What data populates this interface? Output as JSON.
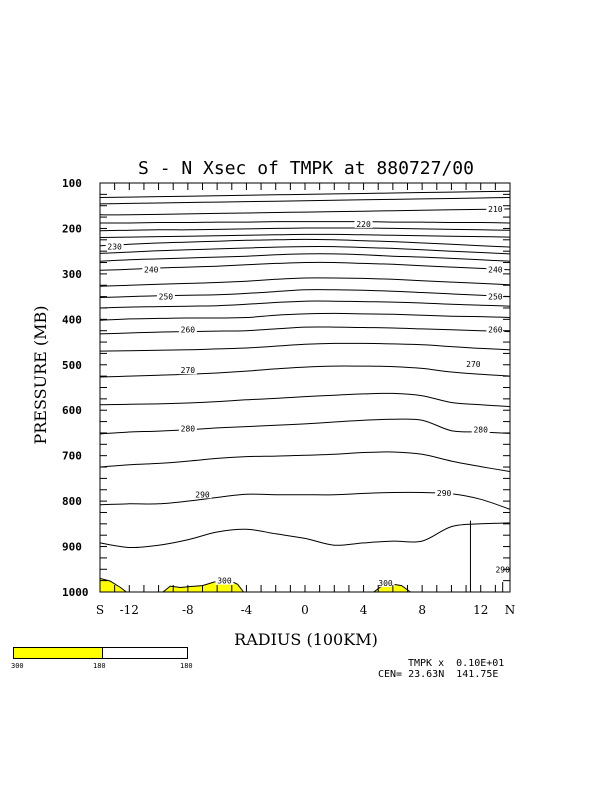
{
  "chart_data": {
    "type": "contour",
    "title": "S - N Xsec of TMPK at 880727/00",
    "xlabel": "RADIUS (100KM)",
    "ylabel": "PRESSURE (MB)",
    "xlim": [
      -14,
      14
    ],
    "ylim_pressure": [
      1000,
      100
    ],
    "x_tick_labels": [
      "S",
      "-12",
      "-8",
      "-4",
      "0",
      "4",
      "8",
      "12",
      "N"
    ],
    "x_tick_values": [
      -14,
      -12,
      -8,
      -4,
      0,
      4,
      8,
      12,
      14
    ],
    "y_tick_labels": [
      "100",
      "200",
      "300",
      "400",
      "500",
      "600",
      "700",
      "800",
      "900",
      "1000"
    ],
    "y_tick_values": [
      100,
      200,
      300,
      400,
      500,
      600,
      700,
      800,
      900,
      1000
    ],
    "x": [
      -14,
      -12,
      -10,
      -8,
      -6,
      -4,
      -2,
      0,
      2,
      4,
      6,
      8,
      10,
      12,
      14
    ],
    "contours": [
      {
        "level": 300,
        "label": "300",
        "labeled": true
      },
      {
        "level": 290,
        "label": "290",
        "labeled": true
      },
      {
        "level": 280,
        "label": "280",
        "labeled": true
      },
      {
        "level": 270,
        "label": "270",
        "labeled": true
      },
      {
        "level": 260,
        "label": "260",
        "labeled": true
      },
      {
        "level": 250,
        "label": "250",
        "labeled": true
      },
      {
        "level": 240,
        "label": "240",
        "labeled": true
      },
      {
        "level": 230,
        "label": "230",
        "labeled": true
      },
      {
        "level": 220,
        "label": "220",
        "labeled": true
      },
      {
        "level": 210,
        "label": "210",
        "labeled": true
      }
    ],
    "lines": [
      {
        "kind": "290",
        "p": [
          892,
          902,
          897,
          885,
          868,
          862,
          872,
          882,
          897,
          892,
          888,
          888,
          856,
          850,
          848
        ]
      },
      {
        "kind": "280-1",
        "p": [
          808,
          806,
          806,
          800,
          792,
          785,
          786,
          786,
          786,
          783,
          781,
          781,
          784,
          796,
          818
        ]
      },
      {
        "kind": "280-2",
        "p": [
          725,
          720,
          717,
          712,
          706,
          702,
          701,
          699,
          697,
          693,
          692,
          697,
          712,
          724,
          735
        ]
      },
      {
        "kind": "280-3",
        "p": [
          652,
          648,
          646,
          643,
          639,
          636,
          633,
          630,
          626,
          622,
          620,
          622,
          645,
          648,
          651
        ]
      },
      {
        "kind": "270-1",
        "p": [
          588,
          587,
          586,
          584,
          581,
          577,
          574,
          570,
          567,
          564,
          563,
          568,
          583,
          588,
          592
        ]
      },
      {
        "kind": "270-2",
        "p": [
          527,
          525,
          523,
          521,
          518,
          514,
          509,
          505,
          503,
          503,
          504,
          508,
          516,
          521,
          525
        ]
      },
      {
        "kind": "260-1",
        "p": [
          470,
          469,
          468,
          467,
          465,
          463,
          459,
          455,
          453,
          453,
          454,
          456,
          460,
          464,
          467
        ]
      },
      {
        "kind": "260-2",
        "p": [
          432,
          430,
          428,
          427,
          426,
          425,
          421,
          417,
          417,
          418,
          419,
          421,
          423,
          425,
          427
        ]
      },
      {
        "kind": "260-3",
        "p": [
          402,
          399,
          398,
          397,
          397,
          396,
          391,
          388,
          387,
          388,
          389,
          391,
          393,
          394,
          396
        ]
      },
      {
        "kind": "250-1",
        "p": [
          375,
          373,
          372,
          371,
          370,
          367,
          363,
          360,
          360,
          361,
          362,
          364,
          367,
          369,
          371
        ]
      },
      {
        "kind": "250-2",
        "p": [
          352,
          350,
          348,
          347,
          346,
          343,
          339,
          335,
          335,
          336,
          338,
          341,
          344,
          347,
          350
        ]
      },
      {
        "kind": "240-1",
        "p": [
          327,
          325,
          323,
          321,
          319,
          316,
          312,
          309,
          309,
          310,
          312,
          315,
          318,
          321,
          324
        ]
      },
      {
        "kind": "240-2",
        "p": [
          292,
          290,
          287,
          285,
          283,
          280,
          277,
          275,
          275,
          277,
          279,
          282,
          285,
          288,
          291
        ]
      },
      {
        "kind": "230-1",
        "p": [
          272,
          269,
          267,
          265,
          263,
          261,
          258,
          256,
          256,
          258,
          261,
          263,
          266,
          269,
          272
        ]
      },
      {
        "kind": "230-2",
        "p": [
          255,
          252,
          249,
          247,
          245,
          243,
          241,
          240,
          240,
          242,
          244,
          247,
          250,
          253,
          256
        ]
      },
      {
        "kind": "230-3",
        "p": [
          238,
          235,
          232,
          230,
          228,
          226,
          225,
          224,
          225,
          227,
          229,
          232,
          235,
          238,
          241
        ]
      },
      {
        "kind": "220-1",
        "p": [
          220,
          219,
          218,
          217,
          216,
          215,
          214,
          213,
          213,
          214,
          215,
          216,
          217,
          218,
          219
        ]
      },
      {
        "kind": "220-2",
        "p": [
          205,
          204,
          203,
          203,
          202,
          201,
          200,
          199,
          199,
          199,
          200,
          201,
          202,
          203,
          204
        ]
      },
      {
        "kind": "210-1",
        "p": [
          188,
          188,
          187,
          187,
          186,
          186,
          185,
          185,
          185,
          185,
          186,
          186,
          187,
          187,
          188
        ]
      },
      {
        "kind": "210-2",
        "p": [
          170,
          170,
          169,
          168,
          167,
          166,
          165,
          164,
          163,
          162,
          161,
          160,
          159,
          158,
          157
        ]
      },
      {
        "kind": "210-3",
        "p": [
          146,
          145,
          144,
          143,
          142,
          141,
          140,
          139,
          138,
          137,
          136,
          135,
          134,
          133,
          132
        ]
      },
      {
        "kind": "210-4",
        "p": [
          132,
          131,
          130,
          129,
          128,
          127,
          126,
          125,
          124,
          123,
          122,
          121,
          120,
          119,
          118
        ]
      }
    ],
    "contour_labels": [
      {
        "text": "210",
        "x": 13.0,
        "p": 157
      },
      {
        "text": "220",
        "x": 4.0,
        "p": 190
      },
      {
        "text": "230",
        "x": -13.0,
        "p": 240
      },
      {
        "text": "240",
        "x": -10.5,
        "p": 290
      },
      {
        "text": "240",
        "x": 13.0,
        "p": 290
      },
      {
        "text": "250",
        "x": -9.5,
        "p": 350
      },
      {
        "text": "250",
        "x": 13.0,
        "p": 350
      },
      {
        "text": "260",
        "x": -8.0,
        "p": 422
      },
      {
        "text": "260",
        "x": 13.0,
        "p": 422
      },
      {
        "text": "270",
        "x": -8.0,
        "p": 512
      },
      {
        "text": "270",
        "x": 11.5,
        "p": 498
      },
      {
        "text": "280",
        "x": -8.0,
        "p": 640
      },
      {
        "text": "280",
        "x": 12.0,
        "p": 642
      },
      {
        "text": "290",
        "x": -7.0,
        "p": 785
      },
      {
        "text": "290",
        "x": 9.5,
        "p": 782
      },
      {
        "text": "300",
        "x": -5.5,
        "p": 975
      },
      {
        "text": "300",
        "x": 5.5,
        "p": 980
      },
      {
        "text": "290",
        "x": 13.5,
        "p": 950
      }
    ],
    "shaded_regions": [
      {
        "level": 300,
        "color": "#ffff00",
        "points": [
          [
            -14,
            1000
          ],
          [
            -14,
            970
          ],
          [
            -13.3,
            976
          ],
          [
            -12.6,
            990
          ],
          [
            -12.2,
            1000
          ]
        ]
      },
      {
        "level": 300,
        "color": "#ffff00",
        "points": [
          [
            -9.7,
            1000
          ],
          [
            -9.2,
            987
          ],
          [
            -8.5,
            990
          ],
          [
            -7.8,
            988
          ],
          [
            -7,
            986
          ],
          [
            -6.2,
            978
          ],
          [
            -5.2,
            974
          ],
          [
            -4.6,
            983
          ],
          [
            -4.2,
            1000
          ]
        ]
      },
      {
        "level": 300,
        "color": "#ffff00",
        "points": [
          [
            4.7,
            1000
          ],
          [
            5.2,
            988
          ],
          [
            5.8,
            982
          ],
          [
            6.6,
            986
          ],
          [
            7.2,
            1000
          ]
        ]
      }
    ],
    "vertical_lines": [
      {
        "x": 11.3,
        "p_top": 843,
        "p_bottom": 1000
      },
      {
        "x": 13.5,
        "p_top": 978,
        "p_bottom": 1000
      }
    ],
    "colorbar": {
      "colors": [
        "#ffff00",
        "#ffffff"
      ],
      "labels": [
        "300",
        "180",
        "180"
      ]
    },
    "footer": {
      "line1": "TMPK x  0.10E+01",
      "line2": "CEN= 23.63N  141.75E"
    }
  }
}
